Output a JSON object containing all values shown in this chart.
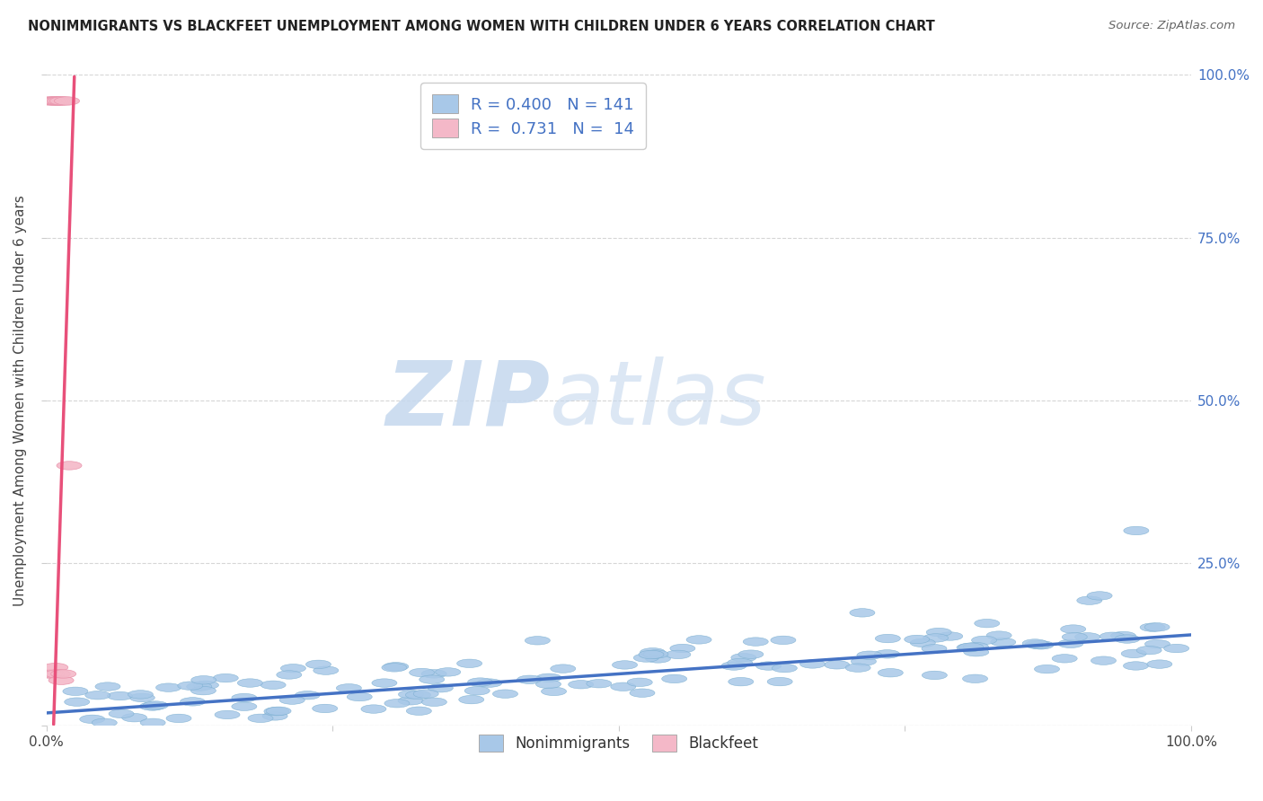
{
  "title": "NONIMMIGRANTS VS BLACKFEET UNEMPLOYMENT AMONG WOMEN WITH CHILDREN UNDER 6 YEARS CORRELATION CHART",
  "source": "Source: ZipAtlas.com",
  "ylabel": "Unemployment Among Women with Children Under 6 years",
  "xlim": [
    0.0,
    1.0
  ],
  "ylim": [
    0.0,
    1.0
  ],
  "nonimmigrant_color": "#a8c8e8",
  "blackfeet_color": "#f4b8c8",
  "nonimmigrant_edge_color": "#7aaed0",
  "blackfeet_edge_color": "#e890a8",
  "nonimmigrant_line_color": "#4472c4",
  "blackfeet_line_color": "#e8507a",
  "R_nonimmigrant": 0.4,
  "N_nonimmigrant": 141,
  "R_blackfeet": 0.731,
  "N_blackfeet": 14,
  "legend_label_nonimmigrant": "Nonimmigrants",
  "legend_label_blackfeet": "Blackfeet",
  "watermark_zip": "ZIP",
  "watermark_atlas": "atlas",
  "title_fontsize": 10.5,
  "label_fontsize": 10.5,
  "background_color": "#ffffff",
  "grid_color": "#cccccc",
  "right_tick_color": "#4472c4",
  "legend_r_color": "#4472c4",
  "legend_n_color": "#333333",
  "legend_n_value_color": "#4472c4"
}
